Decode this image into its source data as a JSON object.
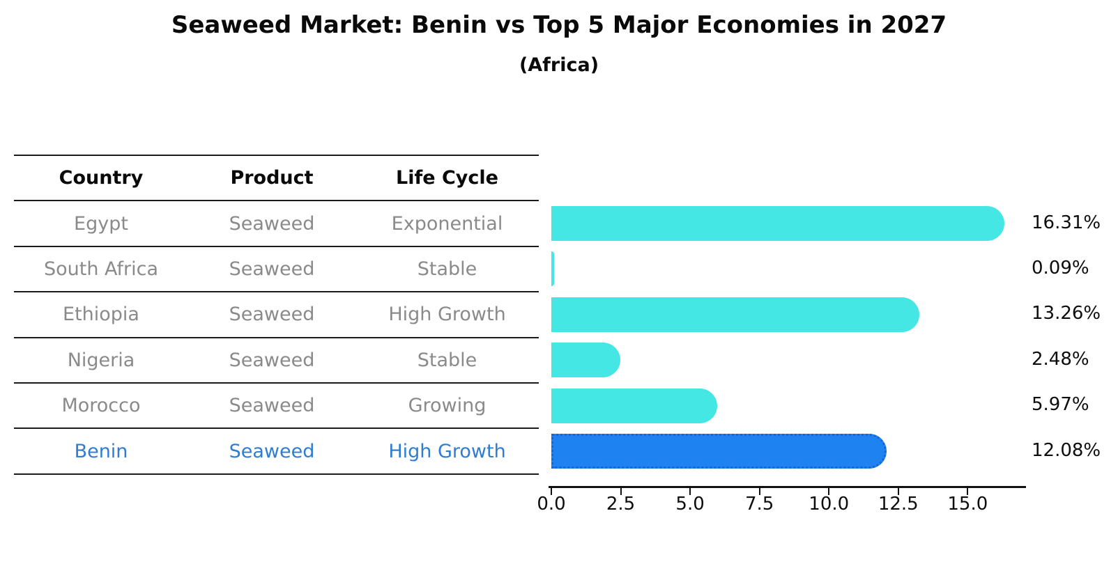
{
  "title": "Seaweed Market: Benin vs Top 5 Major Economies in 2027",
  "subtitle": "(Africa)",
  "table": {
    "columns": [
      "Country",
      "Product",
      "Life Cycle"
    ],
    "rows": [
      {
        "country": "Egypt",
        "product": "Seaweed",
        "life_cycle": "Exponential",
        "highlight": false
      },
      {
        "country": "South Africa",
        "product": "Seaweed",
        "life_cycle": "Stable",
        "highlight": false
      },
      {
        "country": "Ethiopia",
        "product": "Seaweed",
        "life_cycle": "High Growth",
        "highlight": false
      },
      {
        "country": "Nigeria",
        "product": "Seaweed",
        "life_cycle": "Stable",
        "highlight": false
      },
      {
        "country": "Morocco",
        "product": "Seaweed",
        "life_cycle": "Growing",
        "highlight": false
      },
      {
        "country": "Benin",
        "product": "Seaweed",
        "life_cycle": "High Growth",
        "highlight": true
      }
    ]
  },
  "chart_data": {
    "type": "bar",
    "orientation": "horizontal",
    "title": "Seaweed Market: Benin vs Top 5 Major Economies in 2027",
    "subtitle": "(Africa)",
    "categories": [
      "Egypt",
      "South Africa",
      "Ethiopia",
      "Nigeria",
      "Morocco",
      "Benin"
    ],
    "values": [
      16.31,
      0.09,
      13.26,
      2.48,
      5.97,
      12.08
    ],
    "value_labels": [
      "16.31%",
      "0.09%",
      "13.26%",
      "2.48%",
      "5.97%",
      "12.08%"
    ],
    "highlight_index": 5,
    "x_ticks": [
      0.0,
      2.5,
      5.0,
      7.5,
      10.0,
      12.5,
      15.0
    ],
    "x_tick_labels": [
      "0.0",
      "2.5",
      "5.0",
      "7.5",
      "10.0",
      "12.5",
      "15.0"
    ],
    "xlim": [
      0,
      17
    ],
    "grid": false,
    "legend": false,
    "colors": {
      "bar": "#45e7e4",
      "highlight_bar": "#1e82f0",
      "highlight_border": "#1565d8",
      "highlight_text": "#2e7dd3",
      "row_text": "#8a8a8a",
      "header_text": "#0a0a0a",
      "axis": "#111111"
    }
  }
}
